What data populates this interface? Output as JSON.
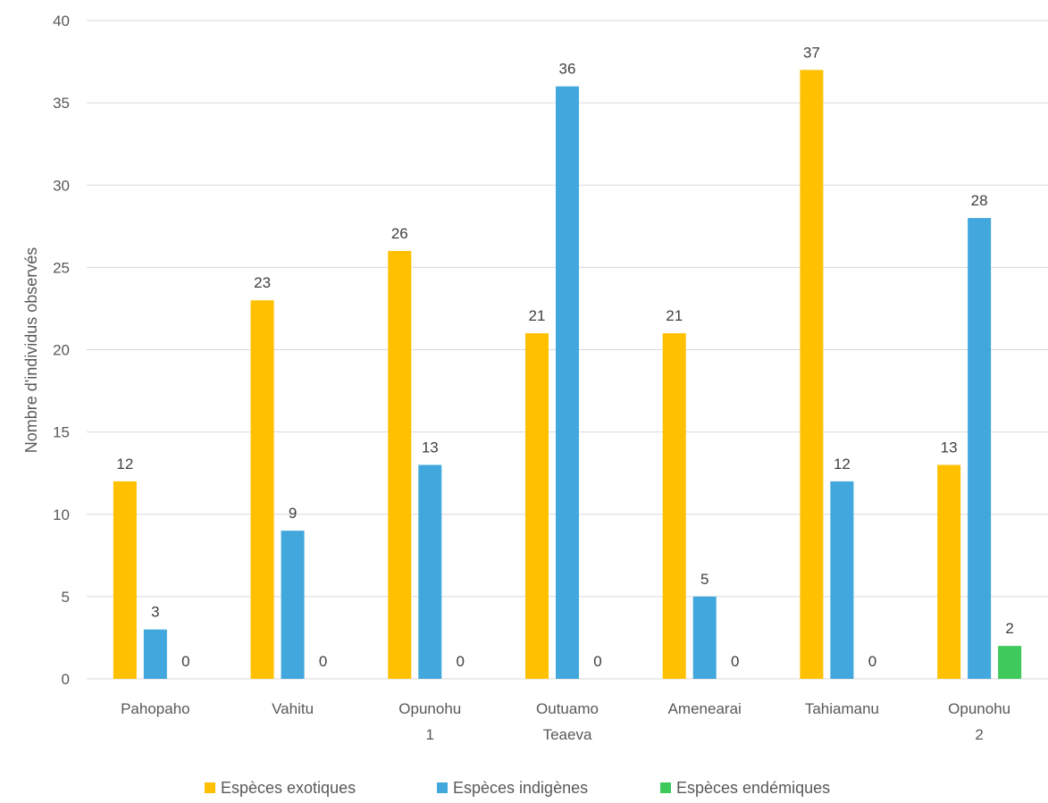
{
  "chart_data": {
    "type": "bar",
    "title": "",
    "xlabel": "",
    "ylabel": "Nombre d'individus observés",
    "ylim": [
      0,
      40
    ],
    "yticks": [
      "0",
      "5",
      "10",
      "15",
      "20",
      "25",
      "30",
      "35",
      "40"
    ],
    "grid": true,
    "legend_position": "bottom",
    "categories": [
      [
        "Pahopaho"
      ],
      [
        "Vahitu"
      ],
      [
        "Opunohu",
        "1"
      ],
      [
        "Outuamo",
        "Teaeva"
      ],
      [
        "Amenearai"
      ],
      [
        "Tahiamanu"
      ],
      [
        "Opunohu",
        "2"
      ]
    ],
    "series": [
      {
        "name": "Espèces exotiques",
        "color": "#ffc000",
        "values": [
          12,
          23,
          26,
          21,
          21,
          37,
          13
        ]
      },
      {
        "name": "Espèces indigènes",
        "color": "#41a7dc",
        "values": [
          3,
          9,
          13,
          36,
          5,
          12,
          28
        ]
      },
      {
        "name": "Espèces endémiques",
        "color": "#3fc95b",
        "values": [
          0,
          0,
          0,
          0,
          0,
          0,
          2
        ]
      }
    ]
  }
}
